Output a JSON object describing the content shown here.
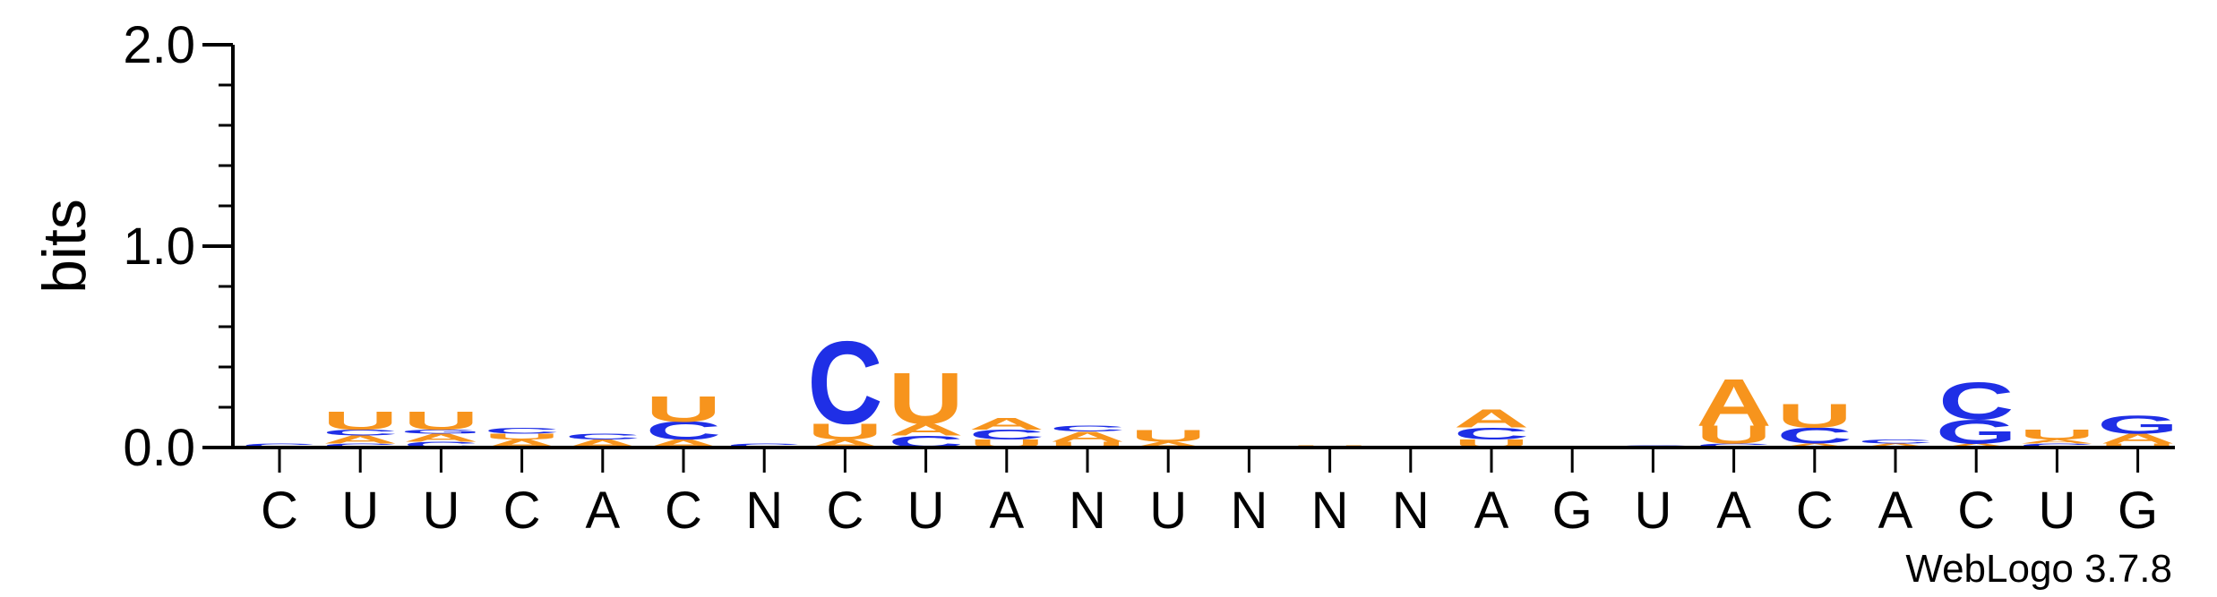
{
  "chart_data": {
    "type": "sequence-logo",
    "ylabel": "bits",
    "ylim": [
      0,
      2
    ],
    "yticks": [
      "0.0",
      "1.0",
      "2.0"
    ],
    "credit": "WebLogo 3.7.8",
    "colors": {
      "A": "#f7941d",
      "U": "#f7941d",
      "C": "#1f2fe6",
      "G": "#1f2fe6"
    },
    "positions": [
      {
        "label": "C",
        "stack": [
          {
            "base": "C",
            "bits": 0.02
          }
        ]
      },
      {
        "label": "U",
        "stack": [
          {
            "base": "C",
            "bits": 0.02
          },
          {
            "base": "A",
            "bits": 0.04
          },
          {
            "base": "C",
            "bits": 0.03
          },
          {
            "base": "U",
            "bits": 0.09
          }
        ]
      },
      {
        "label": "U",
        "stack": [
          {
            "base": "C",
            "bits": 0.03
          },
          {
            "base": "A",
            "bits": 0.04
          },
          {
            "base": "G",
            "bits": 0.02
          },
          {
            "base": "U",
            "bits": 0.09
          }
        ]
      },
      {
        "label": "C",
        "stack": [
          {
            "base": "A",
            "bits": 0.04
          },
          {
            "base": "U",
            "bits": 0.03
          },
          {
            "base": "C",
            "bits": 0.03
          }
        ]
      },
      {
        "label": "A",
        "stack": [
          {
            "base": "A",
            "bits": 0.04
          },
          {
            "base": "C",
            "bits": 0.03
          }
        ]
      },
      {
        "label": "C",
        "stack": [
          {
            "base": "A",
            "bits": 0.04
          },
          {
            "base": "C",
            "bits": 0.09
          },
          {
            "base": "U",
            "bits": 0.13
          }
        ]
      },
      {
        "label": "N",
        "stack": [
          {
            "base": "C",
            "bits": 0.02
          }
        ]
      },
      {
        "label": "C",
        "stack": [
          {
            "base": "A",
            "bits": 0.04
          },
          {
            "base": "U",
            "bits": 0.08
          },
          {
            "base": "C",
            "bits": 0.42
          }
        ]
      },
      {
        "label": "U",
        "stack": [
          {
            "base": "C",
            "bits": 0.06
          },
          {
            "base": "A",
            "bits": 0.06
          },
          {
            "base": "U",
            "bits": 0.26
          }
        ]
      },
      {
        "label": "A",
        "stack": [
          {
            "base": "U",
            "bits": 0.04
          },
          {
            "base": "C",
            "bits": 0.05
          },
          {
            "base": "A",
            "bits": 0.06
          }
        ]
      },
      {
        "label": "N",
        "stack": [
          {
            "base": "U",
            "bits": 0.03
          },
          {
            "base": "A",
            "bits": 0.05
          },
          {
            "base": "C",
            "bits": 0.03
          }
        ]
      },
      {
        "label": "U",
        "stack": [
          {
            "base": "A",
            "bits": 0.03
          },
          {
            "base": "U",
            "bits": 0.06
          }
        ]
      },
      {
        "label": "N",
        "stack": []
      },
      {
        "label": "N",
        "stack": [
          {
            "base": "U",
            "bits": 0.01
          }
        ]
      },
      {
        "label": "N",
        "stack": []
      },
      {
        "label": "A",
        "stack": [
          {
            "base": "U",
            "bits": 0.04
          },
          {
            "base": "C",
            "bits": 0.06
          },
          {
            "base": "A",
            "bits": 0.09
          }
        ]
      },
      {
        "label": "G",
        "stack": []
      },
      {
        "label": "U",
        "stack": [
          {
            "base": "C",
            "bits": 0.01
          }
        ]
      },
      {
        "label": "A",
        "stack": [
          {
            "base": "C",
            "bits": 0.02
          },
          {
            "base": "U",
            "bits": 0.09
          },
          {
            "base": "A",
            "bits": 0.24
          }
        ]
      },
      {
        "label": "C",
        "stack": [
          {
            "base": "A",
            "bits": 0.02
          },
          {
            "base": "C",
            "bits": 0.08
          },
          {
            "base": "U",
            "bits": 0.12
          }
        ]
      },
      {
        "label": "A",
        "stack": [
          {
            "base": "A",
            "bits": 0.02
          },
          {
            "base": "C",
            "bits": 0.02
          }
        ]
      },
      {
        "label": "C",
        "stack": [
          {
            "base": "A",
            "bits": 0.02
          },
          {
            "base": "G",
            "bits": 0.12
          },
          {
            "base": "C",
            "bits": 0.19
          }
        ]
      },
      {
        "label": "U",
        "stack": [
          {
            "base": "C",
            "bits": 0.02
          },
          {
            "base": "A",
            "bits": 0.02
          },
          {
            "base": "U",
            "bits": 0.05
          }
        ]
      },
      {
        "label": "G",
        "stack": [
          {
            "base": "U",
            "bits": 0.02
          },
          {
            "base": "A",
            "bits": 0.05
          },
          {
            "base": "G",
            "bits": 0.09
          }
        ]
      }
    ]
  }
}
